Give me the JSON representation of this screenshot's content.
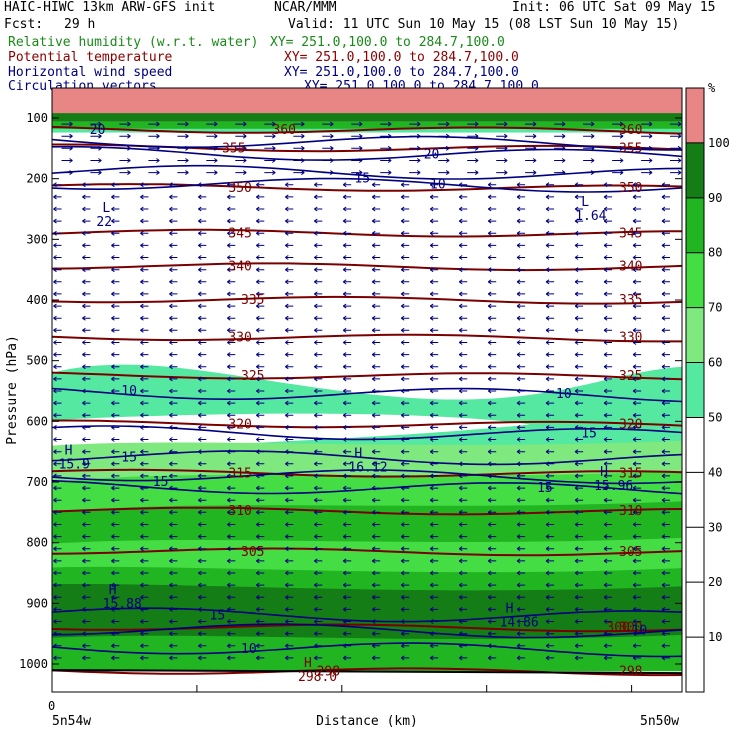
{
  "header": {
    "model": "HAIC-HIWC 13km ARW-GFS init",
    "org": "NCAR/MMM",
    "init": "Init: 06 UTC Sat 09 May 15",
    "fcst_label": "Fcst:",
    "fcst_value": "29 h",
    "valid": "Valid: 11 UTC Sun 10 May 15 (08 LST Sun 10 May 15)"
  },
  "fields": [
    {
      "name": "Relative humidity (w.r.t. water)",
      "xy": "XY= 251.0,100.0 to 284.7,100.0",
      "color": "#1a8a1a"
    },
    {
      "name": "Potential temperature",
      "xy": "XY= 251.0,100.0 to 284.7,100.0",
      "color": "#8b0000"
    },
    {
      "name": "Horizontal wind speed",
      "xy": "XY= 251.0,100.0 to 284.7,100.0",
      "color": "#000080"
    },
    {
      "name": "Circulation vectors",
      "xy": "XY= 251.0,100.0 to 284.7,100.0",
      "color": "#000080"
    }
  ],
  "chart_data": {
    "type": "heatmap",
    "ylabel": "Pressure (hPa)",
    "xlabel": "Distance (km)",
    "y_ticks": [
      100,
      200,
      300,
      400,
      500,
      600,
      700,
      800,
      900,
      1000
    ],
    "ylim": [
      1050,
      70
    ],
    "x_tick_value": "0",
    "x_left_label": "5n54w",
    "x_right_label": "5n50w",
    "colorbar": {
      "unit": "%",
      "ticks": [
        10,
        20,
        30,
        40,
        50,
        60,
        70,
        80,
        90,
        100
      ],
      "levels": [
        {
          "min": 50,
          "max": 60,
          "color": "#55e8a0"
        },
        {
          "min": 60,
          "max": 70,
          "color": "#7fe87f"
        },
        {
          "min": 70,
          "max": 80,
          "color": "#44dd44"
        },
        {
          "min": 80,
          "max": 90,
          "color": "#22b522"
        },
        {
          "min": 90,
          "max": 100,
          "color": "#157d15"
        },
        {
          "min": 100,
          "max": 110,
          "color": "#e88585"
        }
      ]
    },
    "theta_contours": [
      {
        "level": "298",
        "p": 1012
      },
      {
        "level": "300",
        "p": 940
      },
      {
        "level": "305",
        "p": 815
      },
      {
        "level": "310",
        "p": 748
      },
      {
        "level": "315",
        "p": 686
      },
      {
        "level": "320",
        "p": 605
      },
      {
        "level": "325",
        "p": 525
      },
      {
        "level": "330",
        "p": 462
      },
      {
        "level": "335",
        "p": 400
      },
      {
        "level": "340",
        "p": 345
      },
      {
        "level": "345",
        "p": 290
      },
      {
        "level": "350",
        "p": 215
      },
      {
        "level": "355",
        "p": 150
      },
      {
        "level": "360",
        "p": 120
      }
    ],
    "wind_labels": [
      {
        "text": "10",
        "p": 975,
        "x": 0.3
      },
      {
        "text": "10",
        "p": 945,
        "x": 0.92
      },
      {
        "text": "15",
        "p": 920,
        "x": 0.25
      },
      {
        "text": "15",
        "p": 710,
        "x": 0.77
      },
      {
        "text": "15",
        "p": 700,
        "x": 0.16
      },
      {
        "text": "15",
        "p": 660,
        "x": 0.11
      },
      {
        "text": "15",
        "p": 620,
        "x": 0.84
      },
      {
        "text": "10",
        "p": 555,
        "x": 0.8
      },
      {
        "text": "10",
        "p": 550,
        "x": 0.11
      },
      {
        "text": "10",
        "p": 210,
        "x": 0.6
      },
      {
        "text": "15",
        "p": 200,
        "x": 0.48
      },
      {
        "text": "20",
        "p": 160,
        "x": 0.59
      },
      {
        "text": "20",
        "p": 120,
        "x": 0.06
      }
    ],
    "extrema": [
      {
        "type": "H",
        "value": "15.9",
        "p": 655,
        "x": 0.02
      },
      {
        "type": "H",
        "value": "16.12",
        "p": 660,
        "x": 0.48
      },
      {
        "type": "H",
        "value": "15.96",
        "p": 690,
        "x": 0.87
      },
      {
        "type": "H",
        "value": "15.88",
        "p": 885,
        "x": 0.09
      },
      {
        "type": "H",
        "value": "14.86",
        "p": 915,
        "x": 0.72
      },
      {
        "type": "H",
        "value": "298.0",
        "p": 1005,
        "x": 0.4
      },
      {
        "type": "L",
        "value": "22",
        "p": 255,
        "x": 0.08
      },
      {
        "type": "L",
        "value": "1.64",
        "p": 245,
        "x": 0.84
      }
    ]
  }
}
